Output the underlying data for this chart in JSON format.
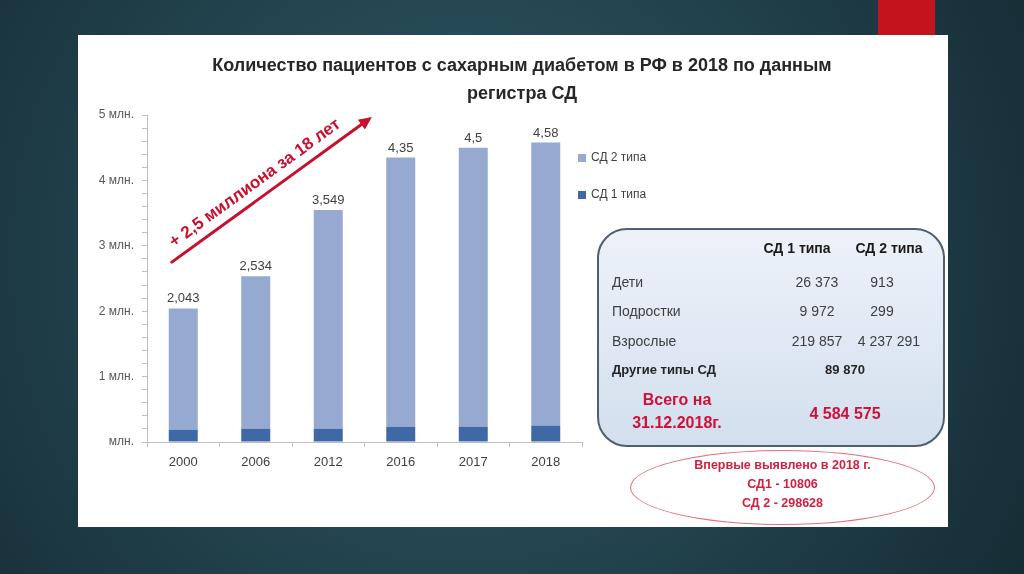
{
  "chart_data": [
    {
      "type": "bar",
      "title": "Количество пациентов с сахарным диабетом в РФ в 2018 по данным регистра СД",
      "categories": [
        "2000",
        "2006",
        "2012",
        "2016",
        "2017",
        "2018"
      ],
      "stacked": true,
      "series": [
        {
          "name": "СД 1 типа",
          "color": "#3e68a6",
          "values": [
            0.19,
            0.2,
            0.2,
            0.23,
            0.23,
            0.25
          ]
        },
        {
          "name": "СД 2 типа",
          "color": "#95a9d1",
          "values": [
            1.853,
            2.334,
            3.349,
            4.12,
            4.27,
            4.33
          ]
        }
      ],
      "totals": [
        "2,043",
        "2,534",
        "3,549",
        "4,35",
        "4,5",
        "4,58"
      ],
      "ylim": [
        0,
        5
      ],
      "yticks": [
        {
          "value": 0,
          "label": "млн."
        },
        {
          "value": 0.2,
          "label": null
        },
        {
          "value": 0.4,
          "label": null
        },
        {
          "value": 0.6,
          "label": null
        },
        {
          "value": 0.8,
          "label": null
        },
        {
          "value": 1,
          "label": "1 млн."
        },
        {
          "value": 1.2,
          "label": null
        },
        {
          "value": 1.4,
          "label": null
        },
        {
          "value": 1.6,
          "label": null
        },
        {
          "value": 1.8,
          "label": null
        },
        {
          "value": 2,
          "label": "2 млн."
        },
        {
          "value": 2.2,
          "label": null
        },
        {
          "value": 2.4,
          "label": null
        },
        {
          "value": 2.6,
          "label": null
        },
        {
          "value": 2.8,
          "label": null
        },
        {
          "value": 3,
          "label": "3 млн."
        },
        {
          "value": 3.2,
          "label": null
        },
        {
          "value": 3.4,
          "label": null
        },
        {
          "value": 3.6,
          "label": null
        },
        {
          "value": 3.8,
          "label": null
        },
        {
          "value": 4,
          "label": "4 млн."
        },
        {
          "value": 4.2,
          "label": null
        },
        {
          "value": 4.4,
          "label": null
        },
        {
          "value": 4.6,
          "label": null
        },
        {
          "value": 4.8,
          "label": null
        },
        {
          "value": 5,
          "label": "5 млн."
        }
      ],
      "grid": false,
      "legend": "top right",
      "annotations": [
        "+ 2,5 миллиона за 18 лет"
      ]
    },
    {
      "type": "other",
      "annotations": [
        "СД 1 типа",
        "СД 2 типа",
        "Дети",
        "26 373",
        "913",
        "Подростки",
        "9 972",
        "299",
        "Взрослые",
        "219 857",
        "4 237 291",
        "Другие типы СД",
        "89 870",
        "Всего на 31.12.2018г.",
        "4 584 575"
      ]
    },
    {
      "type": "other",
      "annotations": [
        "Впервые выявлено в 2018 г.",
        "СД1 - 10806",
        "СД 2 - 298628"
      ]
    }
  ]
}
